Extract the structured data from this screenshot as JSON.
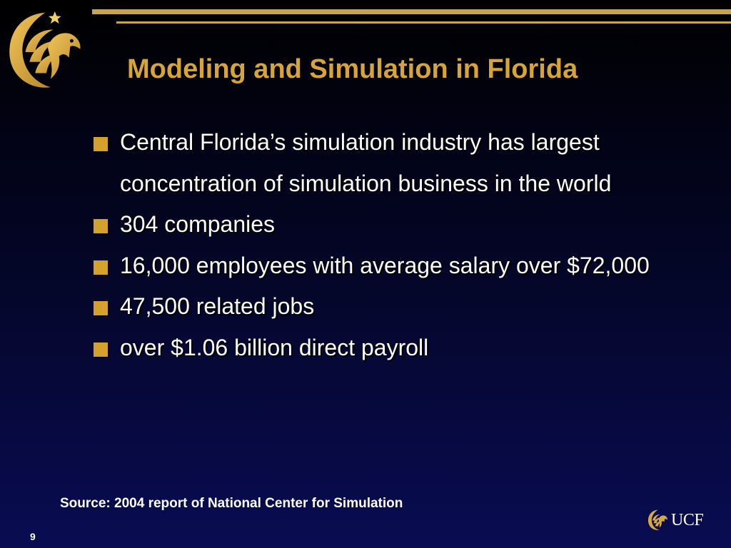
{
  "slide": {
    "title": "Modeling and Simulation in Florida",
    "bullets": [
      {
        "text": "Central Florida’s simulation industry has largest concentration of simulation business in the world"
      },
      {
        "text": "304 companies"
      },
      {
        "text": "16,000 employees with average salary over $72,000"
      },
      {
        "text": "47,500 related jobs"
      },
      {
        "text": "over $1.06 billion direct payroll"
      }
    ],
    "source": "Source: 2004 report of National Center for Simulation",
    "page_number": "9",
    "footer_logo_text": "UCF"
  },
  "icons": {
    "header_logo": "ucf-pegasus-logo-icon",
    "footer_logo": "ucf-pegasus-small-icon",
    "bullet": "square-bullet-icon"
  },
  "colors": {
    "background_top": "#000000",
    "background_bottom": "#090c52",
    "title": "#d7a437",
    "accent_gold": "#c9a44a",
    "bullet_square": "#d4a22c",
    "body_text": "#ffffff"
  }
}
